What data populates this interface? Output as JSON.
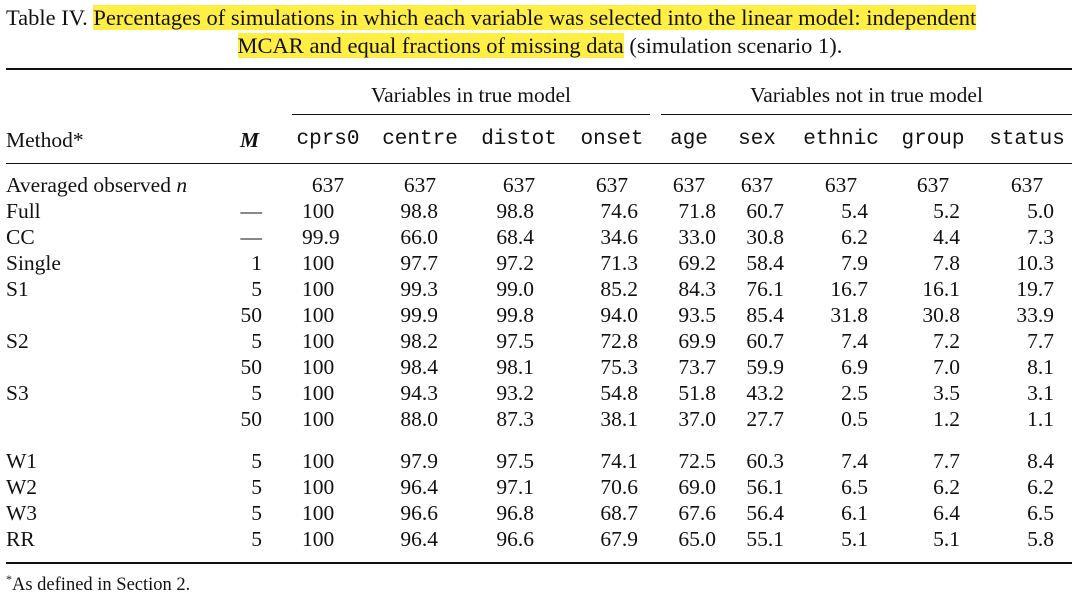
{
  "caption": {
    "label": "Table IV.",
    "highlighted_part1": "Percentages of simulations in which each variable was selected into the linear model: independent",
    "highlighted_part2": "MCAR and equal fractions of missing data",
    "rest": "(simulation scenario 1)."
  },
  "highlight_color": "#ffee44",
  "header": {
    "group_true": "Variables in true model",
    "group_not_true": "Variables not in true model",
    "method": "Method*",
    "m": "M",
    "columns": [
      "cprs0",
      "centre",
      "distot",
      "onset",
      "age",
      "sex",
      "ethnic",
      "group",
      "status"
    ]
  },
  "rows": [
    {
      "method": "Averaged observed n",
      "m": "",
      "values": [
        "637",
        "637",
        "637",
        "637",
        "637",
        "637",
        "637",
        "637",
        "637"
      ]
    },
    {
      "method": "Full",
      "m": "—",
      "values": [
        "100",
        "98.8",
        "98.8",
        "74.6",
        "71.8",
        "60.7",
        "5.4",
        "5.2",
        "5.0"
      ]
    },
    {
      "method": "CC",
      "m": "—",
      "values": [
        "99.9",
        "66.0",
        "68.4",
        "34.6",
        "33.0",
        "30.8",
        "6.2",
        "4.4",
        "7.3"
      ]
    },
    {
      "method": "Single",
      "m": "1",
      "values": [
        "100",
        "97.7",
        "97.2",
        "71.3",
        "69.2",
        "58.4",
        "7.9",
        "7.8",
        "10.3"
      ]
    },
    {
      "method": "S1",
      "m": "5",
      "values": [
        "100",
        "99.3",
        "99.0",
        "85.2",
        "84.3",
        "76.1",
        "16.7",
        "16.1",
        "19.7"
      ]
    },
    {
      "method": "",
      "m": "50",
      "values": [
        "100",
        "99.9",
        "99.8",
        "94.0",
        "93.5",
        "85.4",
        "31.8",
        "30.8",
        "33.9"
      ]
    },
    {
      "method": "S2",
      "m": "5",
      "values": [
        "100",
        "98.2",
        "97.5",
        "72.8",
        "69.9",
        "60.7",
        "7.4",
        "7.2",
        "7.7"
      ]
    },
    {
      "method": "",
      "m": "50",
      "values": [
        "100",
        "98.4",
        "98.1",
        "75.3",
        "73.7",
        "59.9",
        "6.9",
        "7.0",
        "8.1"
      ]
    },
    {
      "method": "S3",
      "m": "5",
      "values": [
        "100",
        "94.3",
        "93.2",
        "54.8",
        "51.8",
        "43.2",
        "2.5",
        "3.5",
        "3.1"
      ]
    },
    {
      "method": "",
      "m": "50",
      "values": [
        "100",
        "88.0",
        "87.3",
        "38.1",
        "37.0",
        "27.7",
        "0.5",
        "1.2",
        "1.1"
      ]
    },
    {
      "method": "W1",
      "m": "5",
      "values": [
        "100",
        "97.9",
        "97.5",
        "74.1",
        "72.5",
        "60.3",
        "7.4",
        "7.7",
        "8.4"
      ]
    },
    {
      "method": "W2",
      "m": "5",
      "values": [
        "100",
        "96.4",
        "97.1",
        "70.6",
        "69.0",
        "56.1",
        "6.5",
        "6.2",
        "6.2"
      ]
    },
    {
      "method": "W3",
      "m": "5",
      "values": [
        "100",
        "96.6",
        "96.8",
        "68.7",
        "67.6",
        "56.4",
        "6.1",
        "6.4",
        "6.5"
      ]
    },
    {
      "method": "RR",
      "m": "5",
      "values": [
        "100",
        "96.4",
        "96.6",
        "67.9",
        "65.0",
        "55.1",
        "5.1",
        "5.1",
        "5.8"
      ]
    }
  ],
  "footnote": {
    "mark": "*",
    "text": "As defined in Section 2."
  }
}
